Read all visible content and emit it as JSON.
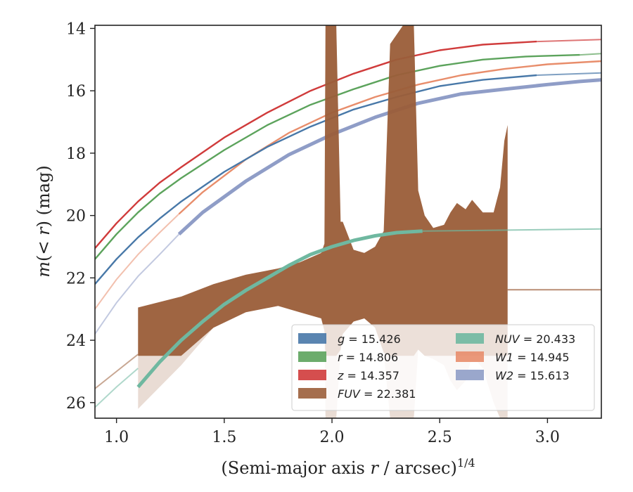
{
  "chart_data": {
    "type": "line",
    "xlabel": "(Semi-major axis r / arcsec)^1/4",
    "xlabel_parts": {
      "prefix": "(Semi-major axis ",
      "var": "r",
      "suffix": " / arcsec)",
      "exponent": "1/4"
    },
    "ylabel": "m(< r) (mag)",
    "ylabel_parts": {
      "m": "m",
      "lt": "(< ",
      "r": "r",
      "rest": ") (mag)"
    },
    "xlim": [
      0.9,
      3.25
    ],
    "ylim": [
      26.5,
      13.9
    ],
    "y_inverted": true,
    "xticks": [
      1.0,
      1.5,
      2.0,
      2.5,
      3.0
    ],
    "xtick_labels": [
      "1.0",
      "1.5",
      "2.0",
      "2.5",
      "3.0"
    ],
    "yticks": [
      14,
      16,
      18,
      20,
      22,
      24,
      26
    ],
    "ytick_labels": [
      "14",
      "16",
      "18",
      "20",
      "22",
      "24",
      "26"
    ],
    "grid": false,
    "legend_position": "lower-right",
    "series": [
      {
        "key": "g",
        "legend_var": "g",
        "legend_value": "= 15.426",
        "color": "#4878a8",
        "data_x": [
          0.9,
          1.0,
          1.1,
          1.2,
          1.3,
          1.5,
          1.7,
          1.9,
          2.1,
          2.3,
          2.5,
          2.7,
          2.95
        ],
        "data_y": [
          22.2,
          21.4,
          20.7,
          20.1,
          19.55,
          18.6,
          17.8,
          17.15,
          16.6,
          16.2,
          15.85,
          15.65,
          15.5
        ],
        "extrap_x": [
          2.95,
          3.25
        ],
        "extrap_y": [
          15.5,
          15.426
        ]
      },
      {
        "key": "r",
        "legend_var": "r",
        "legend_value": "= 14.806",
        "color": "#5ca35c",
        "data_x": [
          0.9,
          1.0,
          1.1,
          1.2,
          1.3,
          1.5,
          1.7,
          1.9,
          2.1,
          2.3,
          2.5,
          2.7,
          2.9,
          3.15
        ],
        "data_y": [
          21.4,
          20.6,
          19.9,
          19.3,
          18.8,
          17.9,
          17.1,
          16.45,
          15.95,
          15.5,
          15.2,
          15.0,
          14.9,
          14.85
        ],
        "extrap_x": [
          3.15,
          3.25
        ],
        "extrap_y": [
          14.85,
          14.806
        ]
      },
      {
        "key": "z",
        "legend_var": "z",
        "legend_value": "= 14.357",
        "color": "#d03b3b",
        "data_x": [
          0.9,
          1.0,
          1.1,
          1.2,
          1.3,
          1.5,
          1.7,
          1.9,
          2.1,
          2.3,
          2.5,
          2.7,
          2.95
        ],
        "data_y": [
          21.05,
          20.25,
          19.55,
          18.95,
          18.45,
          17.5,
          16.7,
          16.0,
          15.45,
          15.0,
          14.7,
          14.52,
          14.42
        ],
        "extrap_x": [
          2.95,
          3.25
        ],
        "extrap_y": [
          14.42,
          14.357
        ]
      },
      {
        "key": "W1",
        "legend_var": "W1",
        "legend_value": "= 14.945",
        "color": "#e88d6b",
        "pre_x": [
          0.9,
          1.0,
          1.1,
          1.2,
          1.29
        ],
        "pre_y": [
          23.0,
          22.05,
          21.25,
          20.55,
          19.95
        ],
        "data_x": [
          1.29,
          1.4,
          1.6,
          1.8,
          2.0,
          2.2,
          2.4,
          2.6,
          2.8,
          3.0,
          3.25
        ],
        "data_y": [
          19.95,
          19.25,
          18.2,
          17.35,
          16.7,
          16.2,
          15.8,
          15.5,
          15.3,
          15.15,
          15.05
        ],
        "extrap_x": [],
        "extrap_y": []
      },
      {
        "key": "W2",
        "legend_var": "W2",
        "legend_value": "= 15.613",
        "color": "#8f9dc7",
        "pre_x": [
          0.9,
          1.0,
          1.1,
          1.2,
          1.29
        ],
        "pre_y": [
          23.8,
          22.8,
          21.95,
          21.25,
          20.6
        ],
        "data_x": [
          1.29,
          1.4,
          1.6,
          1.8,
          2.0,
          2.2,
          2.4,
          2.6,
          2.8,
          3.0,
          3.15,
          3.25
        ],
        "data_y": [
          20.6,
          19.9,
          18.9,
          18.05,
          17.4,
          16.85,
          16.4,
          16.1,
          15.95,
          15.8,
          15.7,
          15.65
        ],
        "extrap_x": [],
        "extrap_y": []
      },
      {
        "key": "NUV",
        "legend_var": "NUV",
        "legend_value": "= 20.433",
        "color": "#6fb8a0",
        "pre_x": [
          0.9,
          1.0,
          1.1
        ],
        "pre_y": [
          26.15,
          25.5,
          24.9
        ],
        "data_x": [
          1.1,
          1.2,
          1.3,
          1.4,
          1.5,
          1.6,
          1.7,
          1.8,
          1.9,
          2.0,
          2.1,
          2.2,
          2.3,
          2.42
        ],
        "data_y": [
          25.5,
          24.7,
          24.0,
          23.4,
          22.85,
          22.4,
          22.0,
          21.6,
          21.25,
          21.0,
          20.8,
          20.65,
          20.55,
          20.5
        ],
        "extrap_x": [
          2.42,
          3.25
        ],
        "extrap_y": [
          20.5,
          20.433
        ]
      },
      {
        "key": "FUV",
        "legend_var": "FUV",
        "legend_value": "= 22.381",
        "color": "#9b5e3a",
        "pre_x": [
          0.9,
          1.0,
          1.1
        ],
        "pre_y": [
          25.55,
          25.0,
          24.45
        ],
        "band_x": [
          1.1,
          1.3,
          1.45,
          1.6,
          1.75,
          1.85,
          1.95,
          1.965,
          1.97,
          2.02,
          2.04,
          2.05,
          2.1,
          2.15,
          2.2,
          2.24,
          2.27,
          2.33,
          2.38,
          2.4,
          2.43,
          2.47,
          2.52,
          2.55,
          2.58,
          2.62,
          2.65,
          2.7,
          2.75,
          2.78,
          2.8,
          2.815
        ],
        "band_upper": [
          22.95,
          22.6,
          22.2,
          21.9,
          21.7,
          21.5,
          21.2,
          20.9,
          13.9,
          13.9,
          20.2,
          20.2,
          21.1,
          21.2,
          21.0,
          20.5,
          14.5,
          13.9,
          13.9,
          19.2,
          20.0,
          20.4,
          20.3,
          19.9,
          19.6,
          19.8,
          19.5,
          19.9,
          19.9,
          19.1,
          17.6,
          17.1
        ],
        "band_lower": [
          26.2,
          24.8,
          23.6,
          23.1,
          22.9,
          23.1,
          23.3,
          23.7,
          26.5,
          26.5,
          24.3,
          23.8,
          23.4,
          23.3,
          23.6,
          24.4,
          26.5,
          26.5,
          26.5,
          24.3,
          24.5,
          24.6,
          24.8,
          25.3,
          25.6,
          25.3,
          24.5,
          24.9,
          26.0,
          26.5,
          26.5,
          26.5
        ],
        "extrap_x": [
          2.815,
          3.25
        ],
        "extrap_y": [
          22.381,
          22.381
        ]
      }
    ],
    "legend": [
      {
        "var": "g",
        "value": "= 15.426",
        "color": "#4878a8"
      },
      {
        "var": "r",
        "value": "= 14.806",
        "color": "#5ca35c"
      },
      {
        "var": "z",
        "value": "= 14.357",
        "color": "#d03b3b"
      },
      {
        "var": "FUV",
        "value": "= 22.381",
        "color": "#9b5e3a"
      },
      {
        "var": "NUV",
        "value": "= 20.433",
        "color": "#6fb8a0"
      },
      {
        "var": "W1",
        "value": "= 14.945",
        "color": "#e88d6b"
      },
      {
        "var": "W2",
        "value": "= 15.613",
        "color": "#8f9dc7"
      }
    ]
  }
}
